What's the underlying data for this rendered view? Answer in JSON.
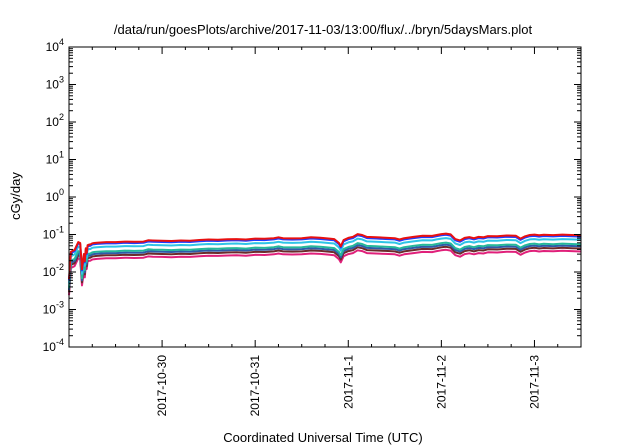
{
  "chart_data": {
    "type": "line",
    "title": "/data/run/goesPlots/archive/2017-11-03/13:00/flux/../bryn/5daysMars.plot",
    "xlabel": "Coordinated Universal Time (UTC)",
    "ylabel": "cGy/day",
    "yscale": "log",
    "ylim": [
      0.0001,
      10000
    ],
    "xlim": [
      0,
      5.5
    ],
    "x_unit": "days after 2017-10-29 00:00 UTC",
    "x_tick_labels": [
      {
        "x": 1,
        "label": "2017-10-30"
      },
      {
        "x": 2,
        "label": "2017-10-31"
      },
      {
        "x": 3,
        "label": "2017-11-1"
      },
      {
        "x": 4,
        "label": "2017-11-2"
      },
      {
        "x": 5,
        "label": "2017-11-3"
      }
    ],
    "y_ticks": [
      {
        "value": 0.0001,
        "base": "10",
        "exp": "-4"
      },
      {
        "value": 0.001,
        "base": "10",
        "exp": "-3"
      },
      {
        "value": 0.01,
        "base": "10",
        "exp": "-2"
      },
      {
        "value": 0.1,
        "base": "10",
        "exp": "-1"
      },
      {
        "value": 1,
        "base": "10",
        "exp": "0"
      },
      {
        "value": 10,
        "base": "10",
        "exp": "1"
      },
      {
        "value": 100,
        "base": "10",
        "exp": "2"
      },
      {
        "value": 1000,
        "base": "10",
        "exp": "3"
      },
      {
        "value": 10000,
        "base": "10",
        "exp": "4"
      }
    ],
    "grid": false,
    "legend": "none",
    "series_colors": [
      "#e0207a",
      "#6b2b2b",
      "#2e5ba8",
      "#26b89a",
      "#2ec4e6",
      "#1f3cff",
      "#e81010"
    ],
    "base_profile": {
      "x": [
        0.0,
        0.02,
        0.06,
        0.09,
        0.1,
        0.12,
        0.14,
        0.16,
        0.17,
        0.18,
        0.19,
        0.2,
        0.22,
        0.23,
        0.24,
        0.25,
        0.27,
        0.3,
        0.4,
        0.5,
        0.6,
        0.7,
        0.8,
        0.85,
        0.9,
        1.0,
        1.1,
        1.2,
        1.3,
        1.4,
        1.5,
        1.6,
        1.7,
        1.8,
        1.9,
        2.0,
        2.1,
        2.2,
        2.25,
        2.3,
        2.4,
        2.5,
        2.6,
        2.7,
        2.8,
        2.85,
        2.9,
        2.92,
        2.95,
        3.0,
        3.05,
        3.1,
        3.15,
        3.2,
        3.3,
        3.4,
        3.5,
        3.55,
        3.6,
        3.7,
        3.8,
        3.9,
        3.95,
        4.0,
        4.05,
        4.1,
        4.15,
        4.2,
        4.25,
        4.3,
        4.35,
        4.4,
        4.45,
        4.5,
        4.6,
        4.7,
        4.8,
        4.85,
        4.9,
        4.95,
        5.0,
        5.05,
        5.1,
        5.2,
        5.3,
        5.4,
        5.5
      ],
      "y": [
        0.006,
        0.032,
        0.036,
        0.052,
        0.058,
        0.055,
        0.011,
        0.028,
        0.018,
        0.04,
        0.03,
        0.048,
        0.05,
        0.05,
        0.052,
        0.054,
        0.055,
        0.056,
        0.058,
        0.058,
        0.06,
        0.059,
        0.06,
        0.065,
        0.064,
        0.063,
        0.062,
        0.064,
        0.063,
        0.066,
        0.068,
        0.067,
        0.069,
        0.07,
        0.068,
        0.072,
        0.071,
        0.074,
        0.078,
        0.074,
        0.073,
        0.074,
        0.078,
        0.076,
        0.072,
        0.07,
        0.055,
        0.045,
        0.066,
        0.075,
        0.08,
        0.095,
        0.09,
        0.08,
        0.078,
        0.076,
        0.074,
        0.068,
        0.074,
        0.08,
        0.086,
        0.085,
        0.09,
        0.095,
        0.098,
        0.093,
        0.07,
        0.064,
        0.075,
        0.079,
        0.074,
        0.08,
        0.078,
        0.084,
        0.083,
        0.087,
        0.086,
        0.072,
        0.083,
        0.09,
        0.092,
        0.088,
        0.091,
        0.089,
        0.092,
        0.09,
        0.088
      ]
    },
    "series": [
      {
        "color": "#e0207a",
        "scale": 0.4
      },
      {
        "color": "#6b2b2b",
        "scale": 0.48
      },
      {
        "color": "#2e5ba8",
        "scale": 0.55
      },
      {
        "color": "#26b89a",
        "scale": 0.62
      },
      {
        "color": "#2ec4e6",
        "scale": 0.82
      },
      {
        "color": "#1f3cff",
        "scale": 1.0
      },
      {
        "color": "#e81010",
        "scale": 1.08
      }
    ]
  }
}
